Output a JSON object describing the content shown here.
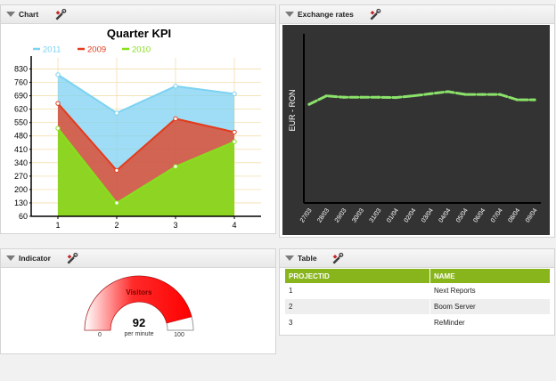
{
  "panels": {
    "chart": {
      "title": "Chart"
    },
    "exchange": {
      "title": "Exchange rates"
    },
    "indicator": {
      "title": "Indicator"
    },
    "table": {
      "title": "Table"
    }
  },
  "icons": {
    "collapse": "triangle-down-icon",
    "settings": "hammer-wrench-icon"
  },
  "chart_data": [
    {
      "type": "area",
      "title": "Quarter KPI",
      "categories": [
        "1",
        "2",
        "3",
        "4"
      ],
      "series": [
        {
          "name": "2011",
          "color": "#7dd2f2",
          "values": [
            800,
            600,
            740,
            700
          ]
        },
        {
          "name": "2009",
          "color": "#e33b1c",
          "values": [
            650,
            300,
            570,
            500
          ]
        },
        {
          "name": "2010",
          "color": "#86e01e",
          "values": [
            520,
            130,
            320,
            450
          ]
        }
      ],
      "yticks": [
        60,
        130,
        200,
        270,
        340,
        410,
        480,
        550,
        620,
        690,
        760,
        830
      ],
      "ylim": [
        60,
        860
      ],
      "grid": true,
      "legend": "top"
    },
    {
      "type": "line",
      "title": "",
      "ylabel": "EUR - RON",
      "color": "#8be26a",
      "background": "#333333",
      "x": [
        "27/03",
        "28/03",
        "29/03",
        "30/03",
        "31/03",
        "01/04",
        "02/04",
        "03/04",
        "04/04",
        "05/04",
        "06/04",
        "07/04",
        "08/04",
        "09/04"
      ],
      "values": [
        4.1,
        4.16,
        4.15,
        4.15,
        4.15,
        4.148,
        4.16,
        4.175,
        4.19,
        4.17,
        4.17,
        4.17,
        4.132,
        4.132
      ],
      "ylim": [
        3.4,
        4.6
      ]
    }
  ],
  "gauge": {
    "label": "Visitors",
    "value": "92",
    "unit": "per minute",
    "min": "0",
    "max": "100",
    "fraction": 0.92,
    "color": "#ff0000"
  },
  "table": {
    "columns": [
      "PROJECTID",
      "NAME"
    ],
    "rows": [
      [
        "1",
        "Next Reports"
      ],
      [
        "2",
        "Boom Server"
      ],
      [
        "3",
        "ReMinder"
      ]
    ]
  }
}
